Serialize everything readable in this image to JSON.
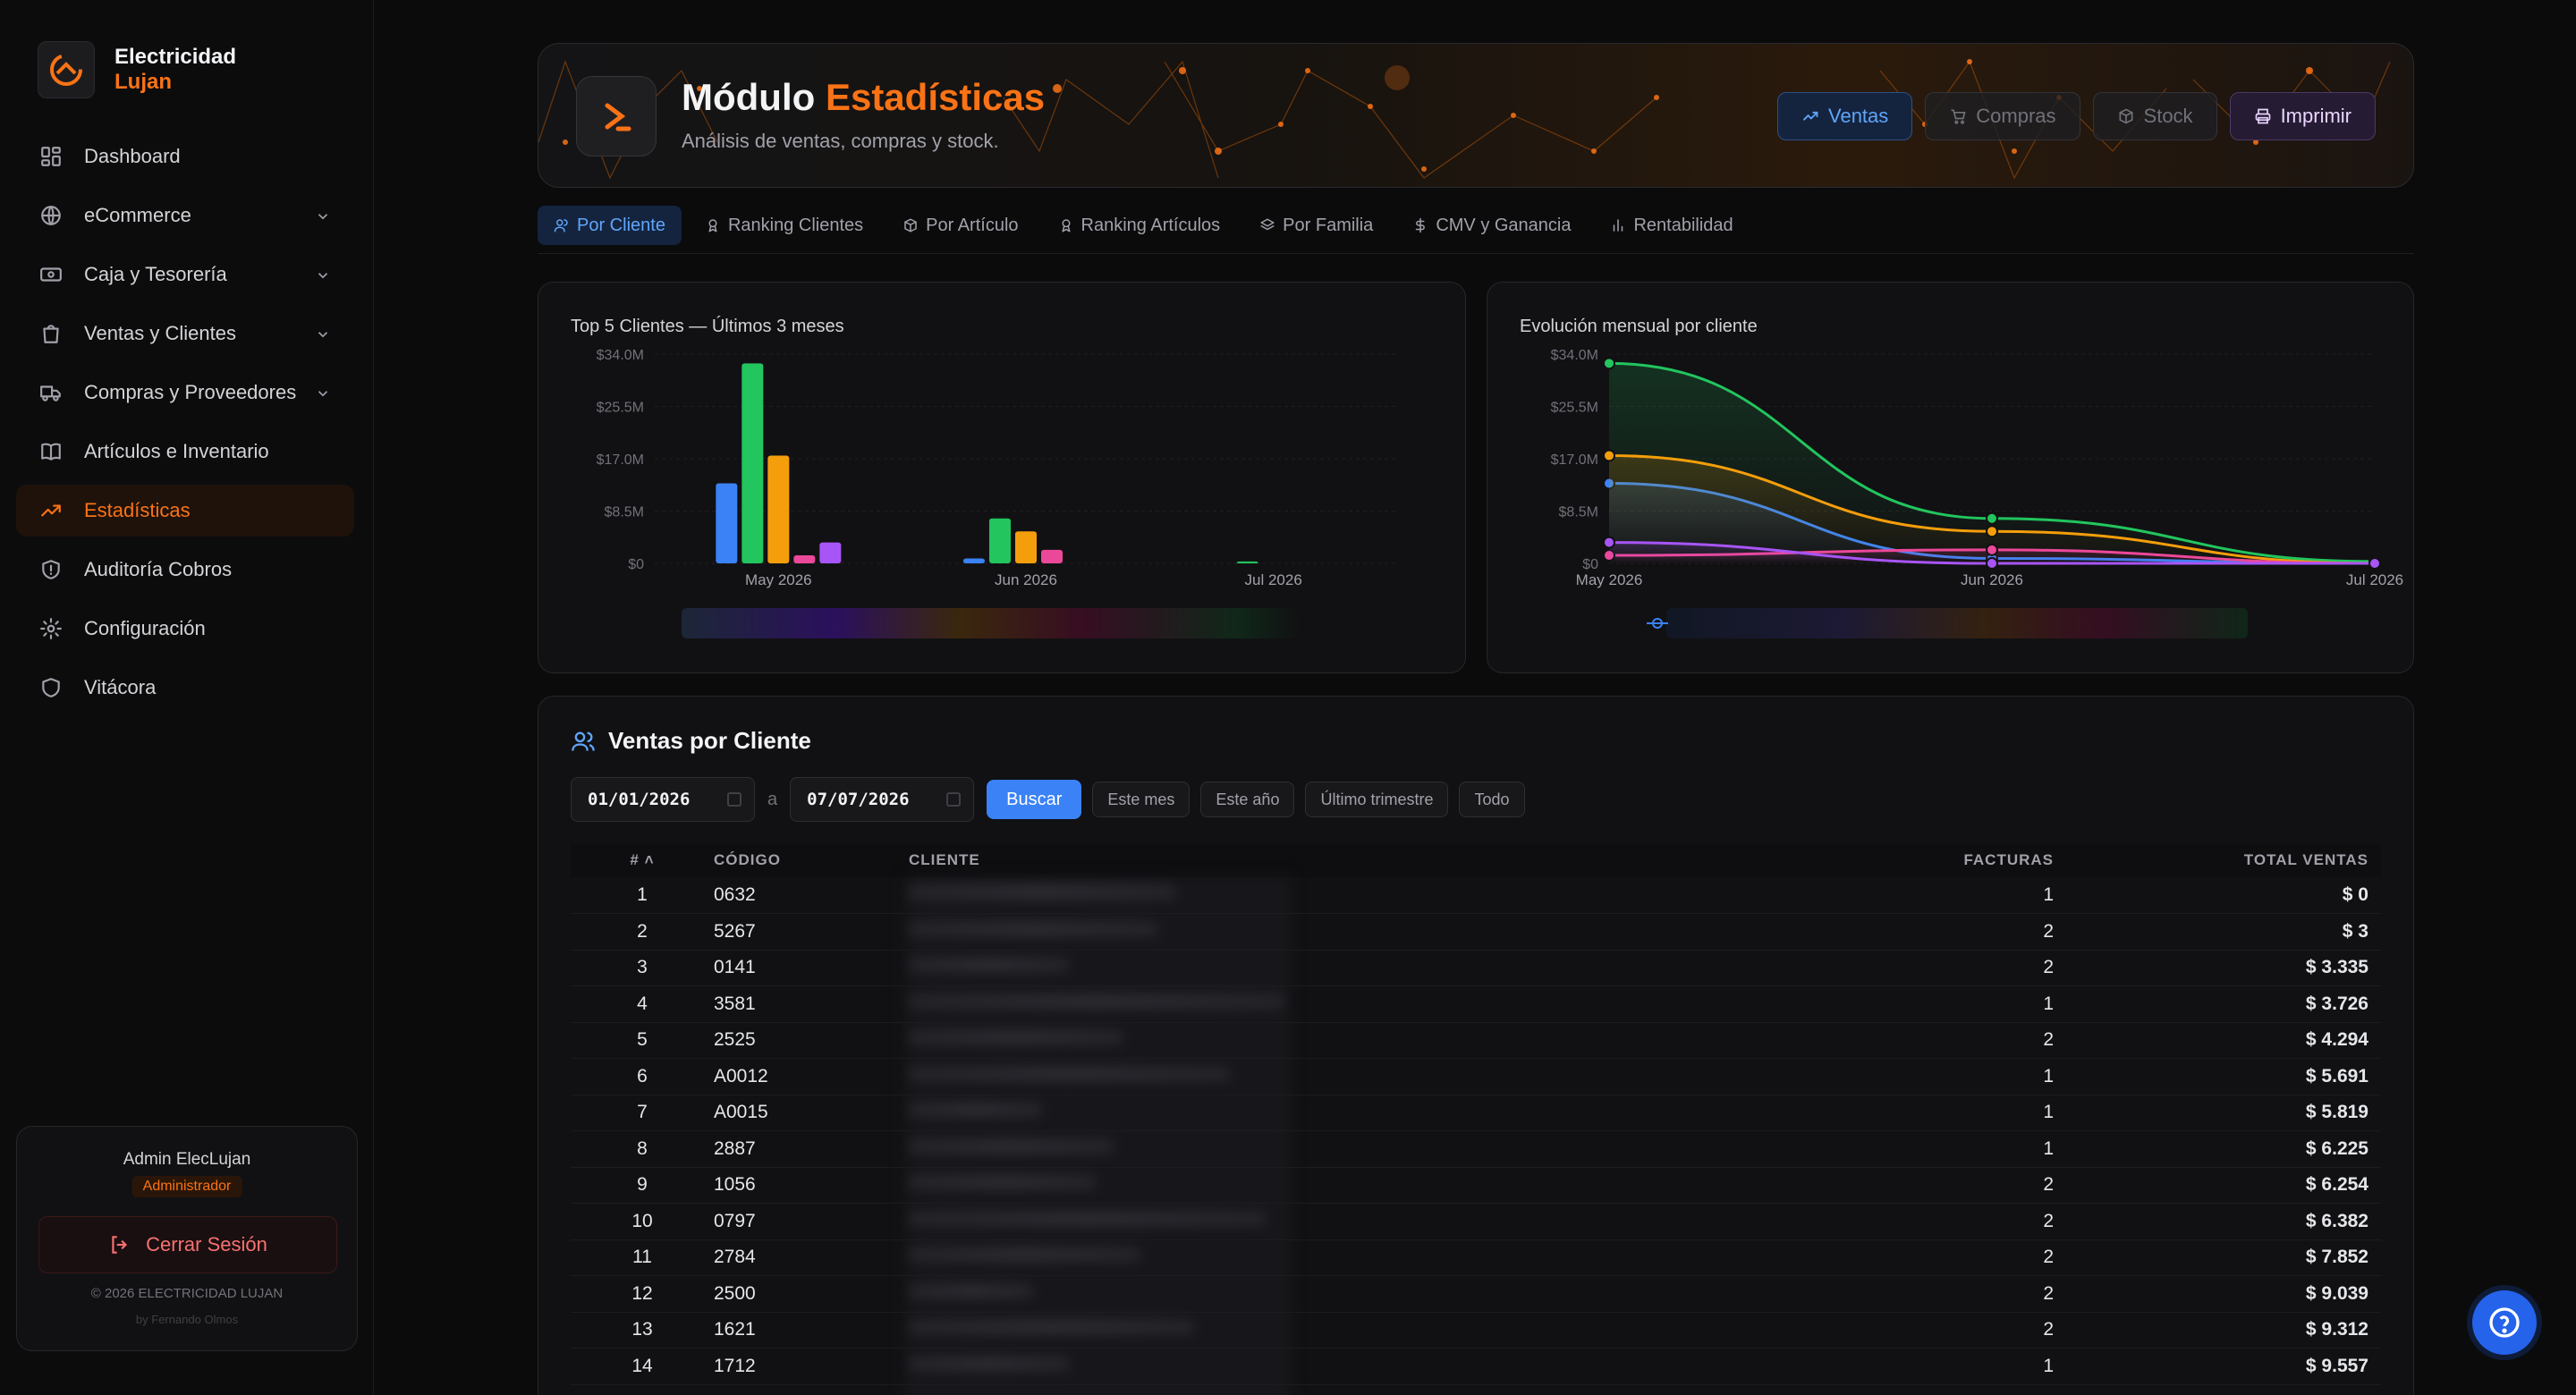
{
  "brand": {
    "line1": "Electricidad",
    "line2": "Lujan"
  },
  "nav": [
    {
      "label": "Dashboard",
      "icon": "dashboard-icon",
      "expandable": false,
      "active": false
    },
    {
      "label": "eCommerce",
      "icon": "globe-icon",
      "expandable": true,
      "active": false
    },
    {
      "label": "Caja y Tesorería",
      "icon": "cash-icon",
      "expandable": true,
      "active": false
    },
    {
      "label": "Ventas y Clientes",
      "icon": "shopping-bag-icon",
      "expandable": true,
      "active": false
    },
    {
      "label": "Compras y Proveedores",
      "icon": "truck-icon",
      "expandable": true,
      "active": false
    },
    {
      "label": "Artículos e Inventario",
      "icon": "book-icon",
      "expandable": false,
      "active": false
    },
    {
      "label": "Estadísticas",
      "icon": "trending-up-icon",
      "expandable": false,
      "active": true
    },
    {
      "label": "Auditoría Cobros",
      "icon": "shield-alert-icon",
      "expandable": false,
      "active": false
    },
    {
      "label": "Configuración",
      "icon": "gear-icon",
      "expandable": false,
      "active": false
    },
    {
      "label": "Vitácora",
      "icon": "shield-icon",
      "expandable": false,
      "active": false
    }
  ],
  "user": {
    "name": "Admin ElecLujan",
    "role": "Administrador",
    "logout_label": "Cerrar Sesión",
    "copyright": "© 2026 ELECTRICIDAD LUJAN",
    "author": "by Fernando Olmos"
  },
  "header": {
    "title_prefix": "Módulo",
    "title_accent": "Estadísticas",
    "subtitle": "Análisis de ventas, compras y stock.",
    "buttons": {
      "ventas": "Ventas",
      "compras": "Compras",
      "stock": "Stock",
      "print": "Imprimir"
    }
  },
  "tabs": [
    {
      "label": "Por Cliente",
      "icon": "users-icon",
      "active": true
    },
    {
      "label": "Ranking Clientes",
      "icon": "award-icon",
      "active": false
    },
    {
      "label": "Por Artículo",
      "icon": "box-icon",
      "active": false
    },
    {
      "label": "Ranking Artículos",
      "icon": "award-icon",
      "active": false
    },
    {
      "label": "Por Familia",
      "icon": "layers-icon",
      "active": false
    },
    {
      "label": "CMV y Ganancia",
      "icon": "dollar-icon",
      "active": false
    },
    {
      "label": "Rentabilidad",
      "icon": "bar-chart-icon",
      "active": false
    }
  ],
  "colors": {
    "accent": "#f97316",
    "blue": "#3b82f6",
    "series": [
      "#3b82f6",
      "#22c55e",
      "#f59e0b",
      "#ec4899",
      "#a855f7"
    ]
  },
  "chart_data": [
    {
      "type": "bar",
      "title": "Top 5 Clientes — Últimos 3 meses",
      "categories": [
        "May 2026",
        "Jun 2026",
        "Jul 2026"
      ],
      "yticks": [
        "$0",
        "$8.5M",
        "$17.0M",
        "$25.5M",
        "$34.0M"
      ],
      "ylim": [
        0,
        34
      ],
      "yunit": "M",
      "series": [
        {
          "values": [
            13,
            0.8,
            0
          ]
        },
        {
          "values": [
            32.5,
            7.3,
            0.3
          ]
        },
        {
          "values": [
            17.5,
            5.2,
            0
          ]
        },
        {
          "values": [
            1.3,
            2.2,
            0
          ]
        },
        {
          "values": [
            3.4,
            0,
            0
          ]
        }
      ]
    },
    {
      "type": "line",
      "title": "Evolución mensual por cliente",
      "categories": [
        "May 2026",
        "Jun 2026",
        "Jul 2026"
      ],
      "yticks": [
        "$0",
        "$8.5M",
        "$17.0M",
        "$25.5M",
        "$34.0M"
      ],
      "ylim": [
        0,
        34
      ],
      "yunit": "M",
      "series": [
        {
          "values": [
            13,
            0.8,
            0
          ]
        },
        {
          "values": [
            32.5,
            7.3,
            0.3
          ]
        },
        {
          "values": [
            17.5,
            5.2,
            0
          ]
        },
        {
          "values": [
            1.3,
            2.2,
            0
          ]
        },
        {
          "values": [
            3.4,
            0,
            0
          ]
        }
      ]
    }
  ],
  "table": {
    "title": "Ventas por Cliente",
    "date_from": "01/01/2026",
    "date_sep": "a",
    "date_to": "07/07/2026",
    "search_label": "Buscar",
    "quick_filters": [
      "Este mes",
      "Este año",
      "Último trimestre",
      "Todo"
    ],
    "columns": {
      "idx": "#",
      "code": "CÓDIGO",
      "client": "CLIENTE",
      "invoices": "FACTURAS",
      "total": "TOTAL VENTAS"
    },
    "rows": [
      {
        "idx": "1",
        "code": "0632",
        "invoices": "1",
        "total": "$ 0"
      },
      {
        "idx": "2",
        "code": "5267",
        "invoices": "2",
        "total": "$ 3"
      },
      {
        "idx": "3",
        "code": "0141",
        "invoices": "2",
        "total": "$ 3.335"
      },
      {
        "idx": "4",
        "code": "3581",
        "invoices": "1",
        "total": "$ 3.726"
      },
      {
        "idx": "5",
        "code": "2525",
        "invoices": "2",
        "total": "$ 4.294"
      },
      {
        "idx": "6",
        "code": "A0012",
        "invoices": "1",
        "total": "$ 5.691"
      },
      {
        "idx": "7",
        "code": "A0015",
        "invoices": "1",
        "total": "$ 5.819"
      },
      {
        "idx": "8",
        "code": "2887",
        "invoices": "1",
        "total": "$ 6.225"
      },
      {
        "idx": "9",
        "code": "1056",
        "invoices": "2",
        "total": "$ 6.254"
      },
      {
        "idx": "10",
        "code": "0797",
        "invoices": "2",
        "total": "$ 6.382"
      },
      {
        "idx": "11",
        "code": "2784",
        "invoices": "2",
        "total": "$ 7.852"
      },
      {
        "idx": "12",
        "code": "2500",
        "invoices": "2",
        "total": "$ 9.039"
      },
      {
        "idx": "13",
        "code": "1621",
        "invoices": "2",
        "total": "$ 9.312"
      },
      {
        "idx": "14",
        "code": "1712",
        "invoices": "1",
        "total": "$ 9.557"
      }
    ]
  }
}
